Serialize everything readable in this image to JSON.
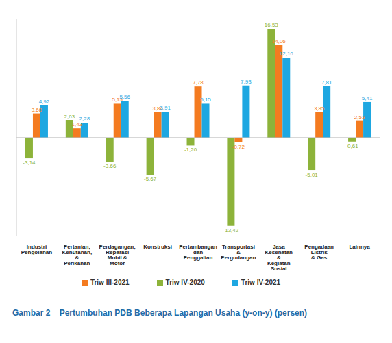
{
  "chart_data": {
    "type": "bar",
    "title": "Gambar 2    Pertumbuhan PDB Beberapa Lapangan Usaha (y-on-y) (persen)",
    "categories": [
      "Industri Pengolahan",
      "Pertanian, Kehutanan, & Perikanan",
      "Perdagangan; Reparasi Mobil & Motor",
      "Konstruksi",
      "Pertambangan dan Penggalian",
      "Transportasi & Pergudangan",
      "Jasa Kesehatan & Kegiatan Sosial",
      "Pengadaan Listrik & Gas",
      "Lainnya"
    ],
    "series": [
      {
        "name": "Triw IV-2020",
        "color": "#8DB33A",
        "values": [
          -3.14,
          2.63,
          -3.66,
          -5.67,
          -1.2,
          -13.42,
          16.53,
          -5.01,
          -0.61
        ],
        "value_labels": [
          "-3,14",
          "2,63",
          "-3,66",
          "-5,67",
          "-1,20",
          "-13,42",
          "16,53",
          "-5,01",
          "-0,61"
        ]
      },
      {
        "name": "Triw III-2021",
        "color": "#F47B20",
        "values": [
          3.68,
          1.43,
          5.15,
          3.84,
          7.78,
          -0.72,
          14.06,
          3.85,
          2.53
        ],
        "value_labels": [
          "3,68",
          "1,43",
          "5,15",
          "3,84",
          "7,78",
          "-0,72",
          "14,06",
          "3,85",
          "2,53"
        ]
      },
      {
        "name": "Triw IV-2021",
        "color": "#1EA7E1",
        "values": [
          4.92,
          2.28,
          5.56,
          3.91,
          5.15,
          7.93,
          12.16,
          7.81,
          5.41
        ],
        "value_labels": [
          "4,92",
          "2,28",
          "5,56",
          "3,91",
          "5,15",
          "7,93",
          "12,16",
          "7,81",
          "5,41"
        ]
      }
    ],
    "ylim": [
      -15,
      18
    ],
    "tick_labels": "x",
    "data_labels": true,
    "legend": "bottom",
    "grid": false
  }
}
